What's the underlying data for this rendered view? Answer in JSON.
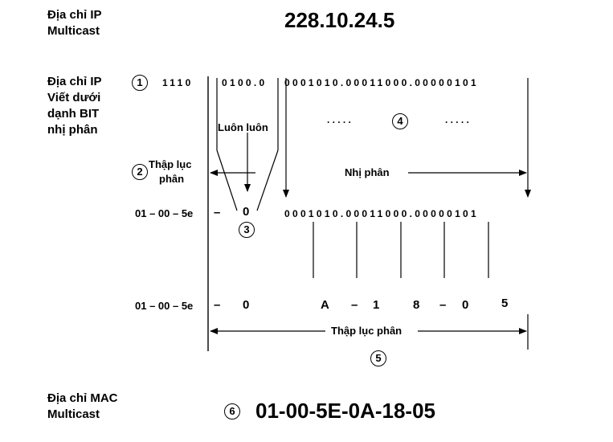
{
  "labels": {
    "ip_multicast_1": "Địa chỉ IP",
    "ip_multicast_2": "Multicast",
    "ip_binary_1": "Địa chỉ IP",
    "ip_binary_2": "Viết dưới",
    "ip_binary_3": "dạnh BIT",
    "ip_binary_4": "nhị phân",
    "mac_multicast_1": "Địa chỉ MAC",
    "mac_multicast_2": "Multicast"
  },
  "ip_address": "228.10.24.5",
  "mac_address": "01-00-5E-0A-18-05",
  "bits": {
    "first_nibble": "1110",
    "second_group": "0100.0",
    "rest": "0001010.00011000.00000101"
  },
  "annotations": {
    "always": "Luôn luôn",
    "hex_1": "Thập lục",
    "hex_2": "phân",
    "binary": "Nhị phân",
    "hexadecimal": "Thập lục phân",
    "dots_left": ".....",
    "dots_right": "....."
  },
  "mac_prefix_row1": "01 – 00 – 5e",
  "mac_prefix_row2": "01 – 00 – 5e",
  "row1": {
    "dash": "–",
    "zero": "0",
    "bits": "0001010.00011000.00000101"
  },
  "row2": {
    "dash": "–",
    "zero": "0",
    "a": "A",
    "dash2": "–",
    "one": "1",
    "eight": "8",
    "dash3": "–",
    "zero2": "0",
    "five": "5"
  },
  "steps": [
    "1",
    "2",
    "3",
    "4",
    "5",
    "6"
  ]
}
